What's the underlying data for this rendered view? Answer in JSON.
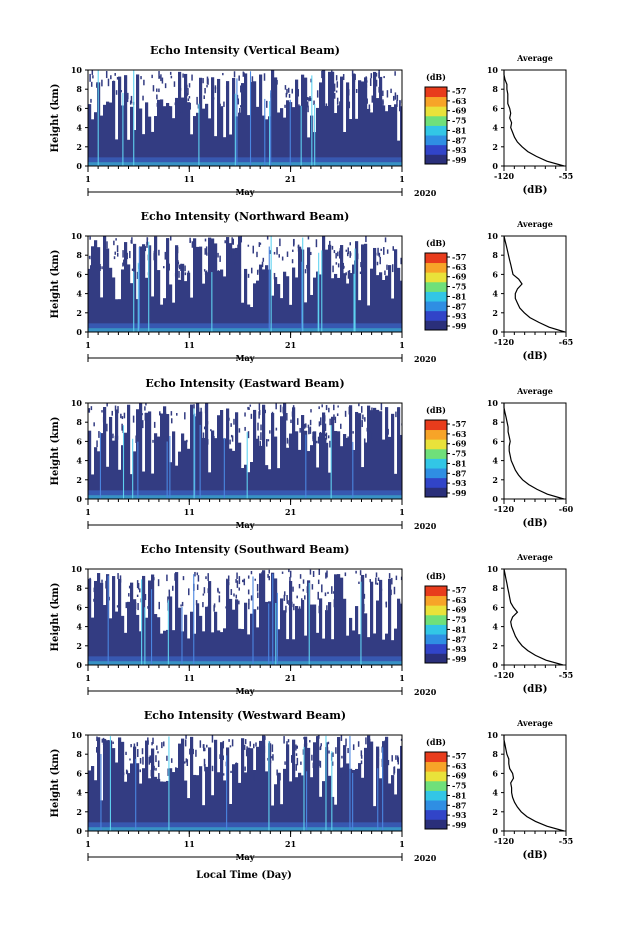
{
  "chart_data": [
    {
      "type": "heatmap",
      "title": "Echo Intensity (Vertical Beam)",
      "ylabel": "Height (km)",
      "yticks": [
        "0",
        "2",
        "4",
        "6",
        "8",
        "10"
      ],
      "ylim": [
        0,
        10
      ],
      "xticks": [
        "1",
        "11",
        "21",
        "1"
      ],
      "xmonth": "May",
      "year": "2020",
      "colorbar": {
        "unit": "(dB)",
        "ticks": [
          "-57",
          "-63",
          "-69",
          "-75",
          "-81",
          "-87",
          "-93",
          "-99"
        ]
      },
      "profile": {
        "title": "Average",
        "xlabel": "(dB)",
        "xticks": [
          "-120",
          "-55"
        ],
        "xlim": [
          -120,
          -55
        ],
        "heights": [
          0,
          0.5,
          1,
          1.5,
          2,
          2.5,
          3,
          3.5,
          4,
          4.5,
          5,
          5.5,
          6,
          6.5,
          7,
          7.5,
          8,
          8.5,
          9,
          9.5,
          10
        ],
        "values": [
          -57,
          -75,
          -86,
          -95,
          -101,
          -106,
          -109,
          -111,
          -113,
          -112,
          -114,
          -113,
          -114,
          -116,
          -116,
          -116,
          -117,
          -117,
          -119,
          -120,
          -120
        ]
      }
    },
    {
      "type": "heatmap",
      "title": "Echo Intensity (Northward Beam)",
      "ylabel": "Height (km)",
      "yticks": [
        "0",
        "2",
        "4",
        "6",
        "8",
        "10"
      ],
      "ylim": [
        0,
        10
      ],
      "xticks": [
        "1",
        "11",
        "21",
        "1"
      ],
      "xmonth": "May",
      "year": "2020",
      "colorbar": {
        "unit": "(dB)",
        "ticks": [
          "-57",
          "-63",
          "-69",
          "-75",
          "-81",
          "-87",
          "-93",
          "-99"
        ]
      },
      "profile": {
        "title": "Average",
        "xlabel": "(dB)",
        "xticks": [
          "-120",
          "-65"
        ],
        "xlim": [
          -120,
          -65
        ],
        "heights": [
          0,
          0.5,
          1,
          1.5,
          2,
          2.5,
          3,
          3.5,
          4,
          4.5,
          5,
          5.5,
          6,
          6.5,
          7,
          7.5,
          8,
          8.5,
          9,
          9.5,
          10
        ],
        "values": [
          -66,
          -80,
          -89,
          -97,
          -102,
          -106,
          -108,
          -110,
          -110,
          -108,
          -104,
          -107,
          -112,
          -113,
          -114,
          -115,
          -116,
          -117,
          -118,
          -119,
          -120
        ]
      }
    },
    {
      "type": "heatmap",
      "title": "Echo Intensity (Eastward Beam)",
      "ylabel": "Height (km)",
      "yticks": [
        "0",
        "2",
        "4",
        "6",
        "8",
        "10"
      ],
      "ylim": [
        0,
        10
      ],
      "xticks": [
        "1",
        "11",
        "21",
        "1"
      ],
      "xmonth": "May",
      "year": "2020",
      "colorbar": {
        "unit": "(dB)",
        "ticks": [
          "-57",
          "-63",
          "-69",
          "-75",
          "-81",
          "-87",
          "-93",
          "-99"
        ]
      },
      "profile": {
        "title": "Average",
        "xlabel": "(dB)",
        "xticks": [
          "-120",
          "-60"
        ],
        "xlim": [
          -120,
          -60
        ],
        "heights": [
          0,
          0.5,
          1,
          1.5,
          2,
          2.5,
          3,
          3.5,
          4,
          4.5,
          5,
          5.5,
          6,
          6.5,
          7,
          7.5,
          8,
          8.5,
          9,
          9.5,
          10
        ],
        "values": [
          -62,
          -78,
          -88,
          -96,
          -102,
          -106,
          -109,
          -111,
          -113,
          -114,
          -115,
          -115,
          -114,
          -115,
          -116,
          -116,
          -117,
          -118,
          -119,
          -120,
          -120
        ]
      }
    },
    {
      "type": "heatmap",
      "title": "Echo Intensity (Southward Beam)",
      "ylabel": "Height (km)",
      "yticks": [
        "0",
        "2",
        "4",
        "6",
        "8",
        "10"
      ],
      "ylim": [
        0,
        10
      ],
      "xticks": [
        "1",
        "11",
        "21",
        "1"
      ],
      "xmonth": "May",
      "year": "2020",
      "colorbar": {
        "unit": "(dB)",
        "ticks": [
          "-57",
          "-63",
          "-69",
          "-75",
          "-81",
          "-87",
          "-93",
          "-99"
        ]
      },
      "profile": {
        "title": "Average",
        "xlabel": "(dB)",
        "xticks": [
          "-120",
          "-55"
        ],
        "xlim": [
          -120,
          -55
        ],
        "heights": [
          0,
          0.5,
          1,
          1.5,
          2,
          2.5,
          3,
          3.5,
          4,
          4.5,
          5,
          5.5,
          6,
          6.5,
          7,
          7.5,
          8,
          8.5,
          9,
          9.5,
          10
        ],
        "values": [
          -58,
          -76,
          -87,
          -95,
          -101,
          -105,
          -108,
          -110,
          -112,
          -113,
          -111,
          -106,
          -110,
          -113,
          -114,
          -115,
          -116,
          -117,
          -118,
          -119,
          -120
        ]
      }
    },
    {
      "type": "heatmap",
      "title": "Echo Intensity (Westward Beam)",
      "ylabel": "Height (km)",
      "yticks": [
        "0",
        "2",
        "4",
        "6",
        "8",
        "10"
      ],
      "ylim": [
        0,
        10
      ],
      "xticks": [
        "1",
        "11",
        "21",
        "1"
      ],
      "xmonth": "May",
      "year": "2020",
      "xlabel": "Local Time (Day)",
      "colorbar": {
        "unit": "(dB)",
        "ticks": [
          "-57",
          "-63",
          "-69",
          "-75",
          "-81",
          "-87",
          "-93",
          "-99"
        ]
      },
      "profile": {
        "title": "Average",
        "xlabel": "(dB)",
        "xticks": [
          "-120",
          "-55"
        ],
        "xlim": [
          -120,
          -55
        ],
        "heights": [
          0,
          0.5,
          1,
          1.5,
          2,
          2.5,
          3,
          3.5,
          4,
          4.5,
          5,
          5.5,
          6,
          6.5,
          7,
          7.5,
          8,
          8.5,
          9,
          9.5,
          10
        ],
        "values": [
          -57,
          -75,
          -87,
          -96,
          -102,
          -106,
          -109,
          -111,
          -112,
          -112,
          -113,
          -110,
          -111,
          -114,
          -115,
          -115,
          -117,
          -118,
          -119,
          -120,
          -120
        ]
      }
    }
  ],
  "colors": {
    "background": "#ffffff",
    "field": "#333c82",
    "colorbar": [
      "#2a2f7a",
      "#3144c8",
      "#2f8ee3",
      "#32c6e6",
      "#6fe07a",
      "#e9e23a",
      "#f7a428",
      "#e83c1c"
    ]
  }
}
